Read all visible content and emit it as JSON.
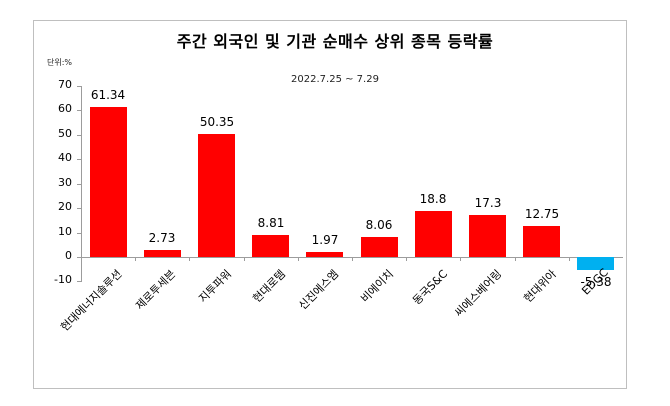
{
  "chart_data": {
    "type": "bar",
    "title": "주간 외국인 및 기관  순매수 상위 종목 등락률",
    "subtitle": "2022.7.25 ~ 7.29",
    "unit_label": "단위:%",
    "xlabel": "",
    "ylabel": "",
    "ylim": [
      -10,
      70
    ],
    "yticks": [
      70,
      60,
      50,
      40,
      30,
      20,
      10,
      0,
      -10
    ],
    "grid": false,
    "legend": null,
    "categories": [
      "현대에너지솔루션",
      "제로투세븐",
      "지투파워",
      "현대로템",
      "신진에스엠",
      "비에이치",
      "동국S&C",
      "씨에스베어링",
      "현대위아",
      "EDGC"
    ],
    "values": [
      61.34,
      2.73,
      50.35,
      8.81,
      1.97,
      8.06,
      18.8,
      17.3,
      12.75,
      -5.38
    ],
    "value_labels": [
      "61.34",
      "2.73",
      "50.35",
      "8.81",
      "1.97",
      "8.06",
      "18.8",
      "17.3",
      "12.75",
      "-5.38"
    ],
    "colors": {
      "positive": "#ff0000",
      "negative": "#00b0f0"
    }
  }
}
